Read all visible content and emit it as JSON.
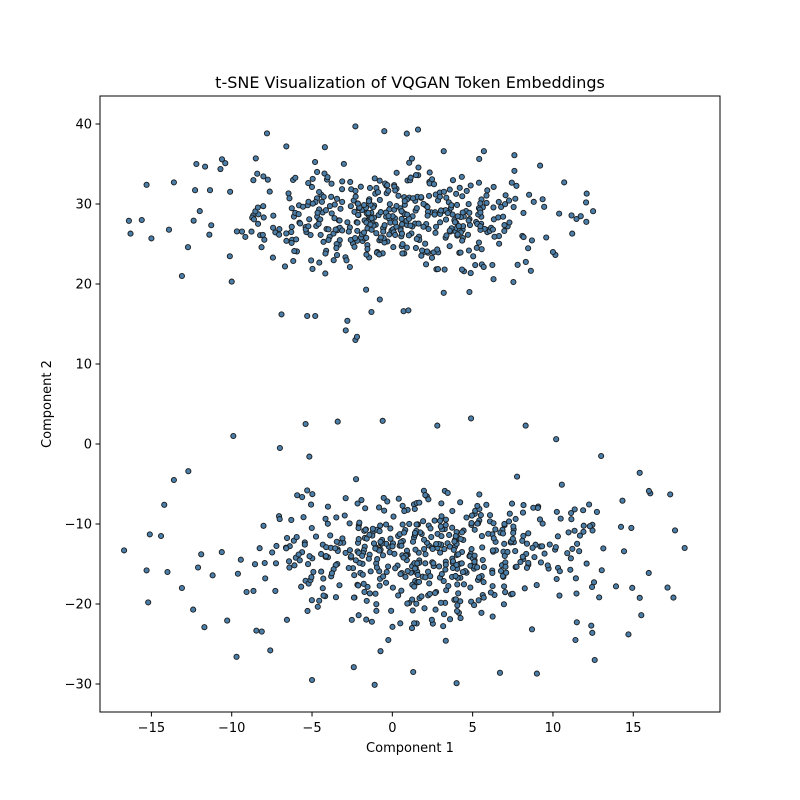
{
  "chart_data": {
    "type": "scatter",
    "title": "t-SNE Visualization of VQGAN Token Embeddings",
    "xlabel": "Component 1",
    "ylabel": "Component 2",
    "xlim": [
      -18.2,
      20.4
    ],
    "ylim": [
      -33.5,
      43.5
    ],
    "xticks": [
      -15,
      -10,
      -5,
      0,
      5,
      10,
      15
    ],
    "yticks": [
      -30,
      -20,
      -10,
      0,
      10,
      20,
      30,
      40
    ],
    "grid": false,
    "legend": "none",
    "marker_fill": "#4a7ea8",
    "marker_edge": "#1a1a1a",
    "clusters": [
      {
        "center": [
          0.0,
          28.0
        ],
        "spread": [
          9.2,
          5.6
        ],
        "count": 480,
        "extent": {
          "x": [
            -16.7,
            12.5
          ],
          "y": [
            12.8,
            39.8
          ]
        }
      },
      {
        "center": [
          2.2,
          -14.0
        ],
        "spread": [
          10.0,
          7.2
        ],
        "count": 560,
        "extent": {
          "x": [
            -16.7,
            18.2
          ],
          "y": [
            -30.2,
            3.2
          ]
        }
      }
    ],
    "series": [
      {
        "points": [
          [
            -2.3,
            13.0
          ],
          [
            -2.2,
            13.4
          ],
          [
            -2.9,
            14.2
          ],
          [
            -2.8,
            15.4
          ],
          [
            0.7,
            16.6
          ],
          [
            1.0,
            16.7
          ],
          [
            -1.3,
            16.5
          ],
          [
            -4.8,
            16.0
          ],
          [
            -5.3,
            16.0
          ],
          [
            -6.9,
            16.2
          ],
          [
            -10.0,
            20.3
          ],
          [
            -13.1,
            21.0
          ],
          [
            -15.0,
            25.7
          ],
          [
            -16.4,
            27.9
          ],
          [
            -16.3,
            26.3
          ],
          [
            -15.6,
            28.0
          ],
          [
            -15.3,
            32.4
          ],
          [
            -13.6,
            32.7
          ],
          [
            -12.2,
            35.0
          ],
          [
            -10.4,
            35.1
          ],
          [
            -8.5,
            35.7
          ],
          [
            -6.6,
            37.2
          ],
          [
            -4.2,
            37.1
          ],
          [
            -2.3,
            39.7
          ],
          [
            -0.5,
            39.1
          ],
          [
            0.9,
            38.8
          ],
          [
            1.6,
            39.3
          ],
          [
            3.2,
            36.6
          ],
          [
            5.7,
            36.6
          ],
          [
            7.6,
            36.1
          ],
          [
            9.2,
            34.8
          ],
          [
            10.7,
            32.7
          ],
          [
            12.1,
            31.3
          ],
          [
            12.5,
            29.1
          ],
          [
            11.2,
            26.3
          ],
          [
            10.0,
            24.0
          ],
          [
            7.8,
            22.4
          ],
          [
            6.3,
            20.6
          ],
          [
            4.8,
            19.0
          ],
          [
            3.2,
            18.9
          ],
          [
            -16.7,
            -13.3
          ],
          [
            -15.2,
            -19.8
          ],
          [
            -13.1,
            -18.0
          ],
          [
            -11.7,
            -22.9
          ],
          [
            -9.7,
            -26.6
          ],
          [
            -7.6,
            -25.8
          ],
          [
            -5.0,
            -29.5
          ],
          [
            -2.4,
            -27.9
          ],
          [
            -1.1,
            -30.1
          ],
          [
            1.3,
            -28.5
          ],
          [
            4.0,
            -29.9
          ],
          [
            6.7,
            -28.6
          ],
          [
            9.0,
            -28.7
          ],
          [
            11.4,
            -24.5
          ],
          [
            12.6,
            -27.0
          ],
          [
            14.7,
            -23.8
          ],
          [
            15.5,
            -21.4
          ],
          [
            17.5,
            -19.2
          ],
          [
            18.2,
            -13.0
          ],
          [
            17.6,
            -10.8
          ],
          [
            17.3,
            -6.3
          ],
          [
            15.4,
            -3.6
          ],
          [
            13.0,
            -1.5
          ],
          [
            10.2,
            0.6
          ],
          [
            8.3,
            2.3
          ],
          [
            4.9,
            3.2
          ],
          [
            2.8,
            2.3
          ],
          [
            -0.6,
            2.9
          ],
          [
            -3.4,
            2.8
          ],
          [
            -5.4,
            2.5
          ],
          [
            -7.0,
            -0.5
          ],
          [
            -9.9,
            1.0
          ],
          [
            -12.7,
            -3.4
          ],
          [
            -13.6,
            -4.5
          ],
          [
            -14.2,
            -7.6
          ],
          [
            -15.1,
            -11.3
          ],
          [
            -14.4,
            -11.5
          ],
          [
            -14.0,
            -16.0
          ],
          [
            -15.3,
            -15.8
          ],
          [
            -12.4,
            -20.7
          ]
        ]
      }
    ]
  }
}
